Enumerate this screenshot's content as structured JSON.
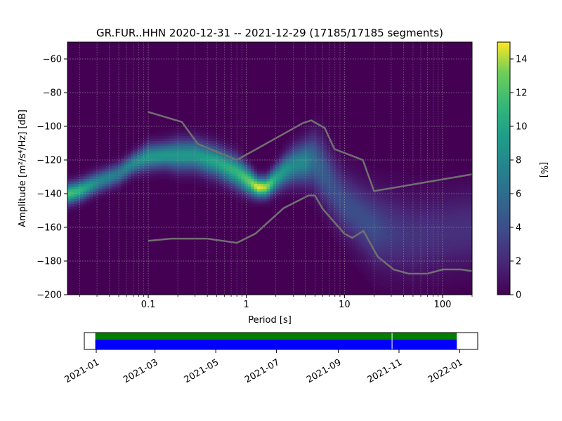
{
  "chart_data": [
    {
      "type": "heatmap",
      "title": "GR.FUR..HHN   2020-12-31 -- 2021-12-29  (17185/17185 segments)",
      "xlabel": "Period [s]",
      "ylabel": "Amplitude [m²/s⁴/Hz] [dB]",
      "x_scale": "log",
      "xlim": [
        0.015,
        200
      ],
      "ylim": [
        -200,
        -50
      ],
      "x_ticks": [
        {
          "value": 0.1,
          "label": "0.1"
        },
        {
          "value": 1,
          "label": "1"
        },
        {
          "value": 10,
          "label": "10"
        },
        {
          "value": 100,
          "label": "100"
        }
      ],
      "y_ticks": [
        {
          "value": -60,
          "label": "−60"
        },
        {
          "value": -80,
          "label": "−80"
        },
        {
          "value": -100,
          "label": "−100"
        },
        {
          "value": -120,
          "label": "−120"
        },
        {
          "value": -140,
          "label": "−140"
        },
        {
          "value": -160,
          "label": "−160"
        },
        {
          "value": -180,
          "label": "−180"
        },
        {
          "value": -200,
          "label": "−200"
        }
      ],
      "grid": true,
      "colormap": "viridis",
      "colorbar": {
        "label": "[%]",
        "range": [
          0,
          15
        ],
        "ticks": [
          {
            "value": 0,
            "label": "0"
          },
          {
            "value": 2,
            "label": "2"
          },
          {
            "value": 4,
            "label": "4"
          },
          {
            "value": 6,
            "label": "6"
          },
          {
            "value": 8,
            "label": "8"
          },
          {
            "value": 10,
            "label": "10"
          },
          {
            "value": 12,
            "label": "12"
          },
          {
            "value": 14,
            "label": "14"
          }
        ]
      },
      "mode_curve": {
        "period": [
          0.015,
          0.02,
          0.03,
          0.05,
          0.07,
          0.1,
          0.15,
          0.2,
          0.3,
          0.5,
          0.8,
          1.1,
          1.3,
          1.6,
          2,
          2.5,
          3,
          4,
          4.8,
          6,
          8,
          10,
          15,
          20,
          30,
          50,
          100,
          200
        ],
        "amplitude": [
          -140,
          -138,
          -133,
          -128,
          -122,
          -118,
          -117,
          -117,
          -117,
          -121,
          -127,
          -133,
          -136,
          -136,
          -131,
          -126,
          -123,
          -121,
          -120,
          -126,
          -138,
          -146,
          -154,
          -160,
          -163,
          -165,
          -163,
          -160
        ],
        "width_db": [
          4,
          4,
          4,
          4,
          4,
          5,
          5,
          6,
          6,
          6,
          6,
          5,
          4,
          4,
          5,
          6,
          7,
          8,
          10,
          12,
          12,
          12,
          13,
          14,
          15,
          15,
          15,
          15
        ],
        "peak_percent": [
          12,
          11,
          8,
          7,
          8,
          9,
          9,
          9,
          9,
          10,
          11,
          13,
          15,
          14,
          10,
          9,
          8,
          8,
          6,
          5,
          4,
          4,
          4,
          4,
          3,
          2.5,
          2.3,
          2.3
        ]
      },
      "high_noise_model": {
        "period": [
          0.1,
          0.22,
          0.32,
          0.8,
          3.8,
          4.6,
          6.3,
          7.9,
          15.4,
          20,
          354.8
        ],
        "amplitude": [
          -91.5,
          -97.4,
          -110.5,
          -120,
          -98,
          -96.5,
          -101,
          -113.5,
          -120,
          -138.5,
          -126
        ]
      },
      "low_noise_model": {
        "period": [
          0.1,
          0.17,
          0.4,
          0.8,
          1.24,
          2.4,
          4.3,
          5,
          6,
          10,
          12,
          15.6,
          21.9,
          31.6,
          45,
          70,
          101,
          154,
          200
        ],
        "amplitude": [
          -168,
          -166.7,
          -166.7,
          -169.2,
          -163.7,
          -148.6,
          -141.1,
          -141.1,
          -149,
          -163.8,
          -166.2,
          -162.1,
          -177.5,
          -185,
          -187.5,
          -187.5,
          -185,
          -185,
          -186
        ]
      }
    },
    {
      "type": "bar",
      "x_ticks": [
        {
          "value": "2021-01-01",
          "label": "2021-01"
        },
        {
          "value": "2021-03-01",
          "label": "2021-03"
        },
        {
          "value": "2021-05-01",
          "label": "2021-05"
        },
        {
          "value": "2021-07-01",
          "label": "2021-07"
        },
        {
          "value": "2021-09-01",
          "label": "2021-09"
        },
        {
          "value": "2021-11-01",
          "label": "2021-11"
        },
        {
          "value": "2022-01-01",
          "label": "2022-01"
        }
      ],
      "xlim": [
        "2020-12-20",
        "2022-01-19"
      ],
      "coverage": {
        "start": "2020-12-31",
        "end": "2021-12-29",
        "gap": "2021-10-25",
        "data_color": "#0000ff",
        "processed_color": "#008000"
      }
    }
  ]
}
